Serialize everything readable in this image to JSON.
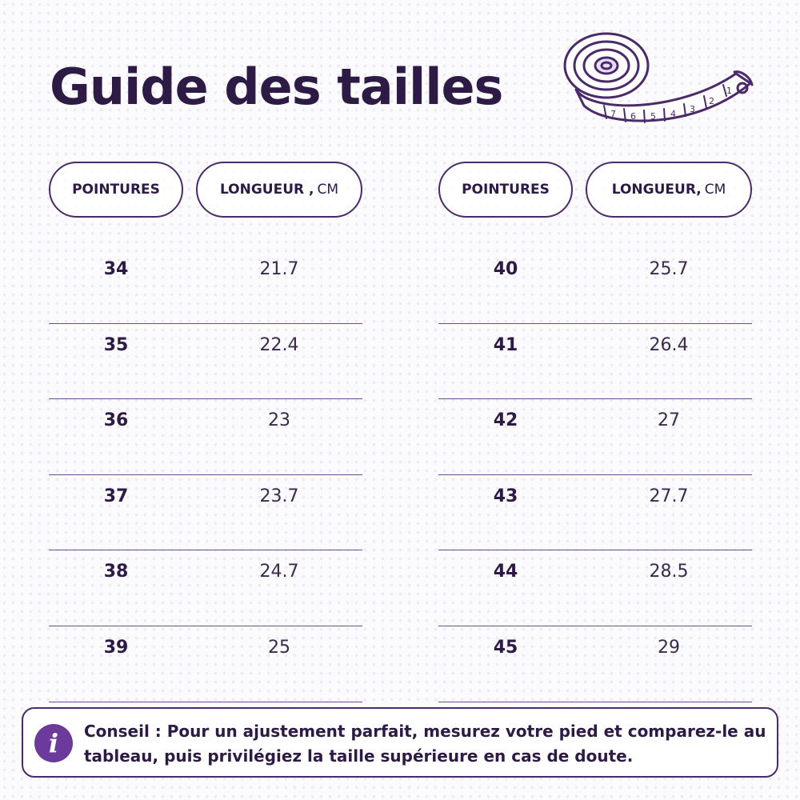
{
  "title": "Guide des tailles",
  "icons": {
    "tape": "measuring-tape-icon",
    "info": "info-icon"
  },
  "colors": {
    "primary": "#2d1a45",
    "accent": "#6b3a9a",
    "line": "#6b4d8a"
  },
  "table_left": {
    "header_size": "POINTURES",
    "header_length": "LONGUEUR ,",
    "header_unit": "CM",
    "rows": [
      {
        "size": "34",
        "length": "21.7"
      },
      {
        "size": "35",
        "length": "22.4"
      },
      {
        "size": "36",
        "length": "23"
      },
      {
        "size": "37",
        "length": "23.7"
      },
      {
        "size": "38",
        "length": "24.7"
      },
      {
        "size": "39",
        "length": "25"
      }
    ]
  },
  "table_right": {
    "header_size": "POINTURES",
    "header_length": "LONGUEUR,",
    "header_unit": "CM",
    "rows": [
      {
        "size": "40",
        "length": "25.7"
      },
      {
        "size": "41",
        "length": "26.4"
      },
      {
        "size": "42",
        "length": "27"
      },
      {
        "size": "43",
        "length": "27.7"
      },
      {
        "size": "44",
        "length": "28.5"
      },
      {
        "size": "45",
        "length": "29"
      }
    ]
  },
  "tip": {
    "icon_glyph": "i",
    "text": "Conseil : Pour un ajustement parfait, mesurez votre pied et comparez-le au tableau, puis privilégiez la taille supérieure en cas de doute."
  },
  "tape_marks": [
    "7",
    "6",
    "5",
    "4",
    "3",
    "2",
    "1"
  ]
}
